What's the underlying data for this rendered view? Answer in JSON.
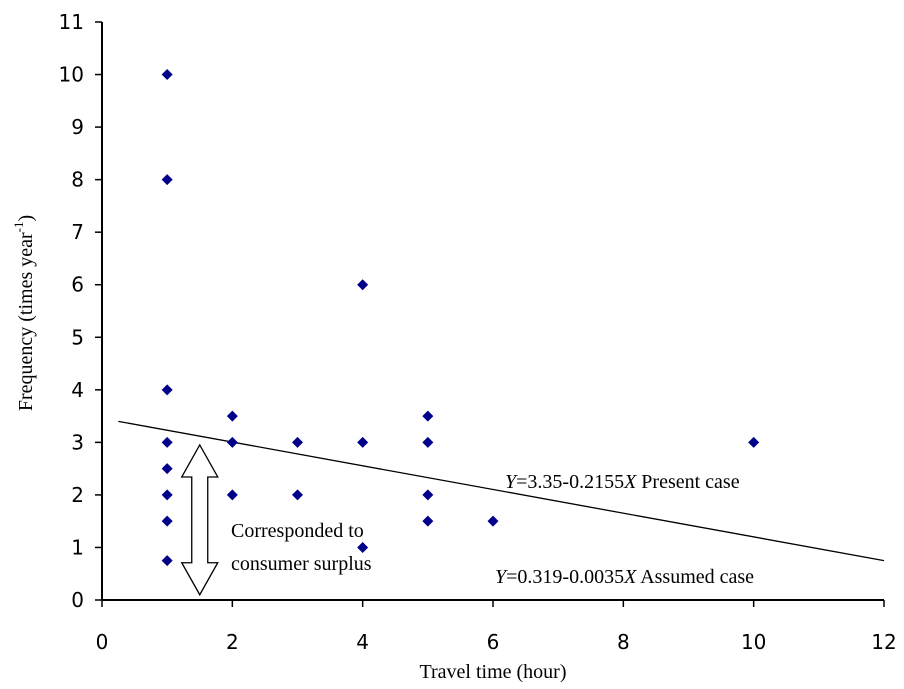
{
  "chart_data": {
    "type": "scatter",
    "title": "",
    "xlabel": "Travel time (hour)",
    "ylabel_main": "Frequency (times year",
    "ylabel_sup": "-1",
    "ylabel_close": ")",
    "xlim": [
      0,
      12
    ],
    "ylim": [
      0,
      11
    ],
    "xticks": [
      0,
      2,
      4,
      6,
      8,
      10,
      12
    ],
    "yticks": [
      0,
      1,
      2,
      3,
      4,
      5,
      6,
      7,
      8,
      9,
      10,
      11
    ],
    "grid": false,
    "legend": "none",
    "marker_color": "#00008B",
    "series": [
      {
        "points": [
          {
            "x": 1,
            "y": 10
          },
          {
            "x": 1,
            "y": 8
          },
          {
            "x": 1,
            "y": 4
          },
          {
            "x": 1,
            "y": 3
          },
          {
            "x": 1,
            "y": 2.5
          },
          {
            "x": 1,
            "y": 2
          },
          {
            "x": 1,
            "y": 1.5
          },
          {
            "x": 1,
            "y": 0.75
          },
          {
            "x": 2,
            "y": 3.5
          },
          {
            "x": 2,
            "y": 3
          },
          {
            "x": 2,
            "y": 2
          },
          {
            "x": 3,
            "y": 3
          },
          {
            "x": 3,
            "y": 2
          },
          {
            "x": 4,
            "y": 6
          },
          {
            "x": 4,
            "y": 3
          },
          {
            "x": 4,
            "y": 1
          },
          {
            "x": 5,
            "y": 3.5
          },
          {
            "x": 5,
            "y": 3
          },
          {
            "x": 5,
            "y": 2
          },
          {
            "x": 5,
            "y": 1.5
          },
          {
            "x": 6,
            "y": 1.5
          },
          {
            "x": 10,
            "y": 3
          }
        ]
      }
    ],
    "trend_line": {
      "x": [
        0.25,
        12
      ],
      "y": [
        3.4,
        0.75
      ]
    },
    "annotations": {
      "present_y": "Y",
      "present_rest": "=3.35-0.2155",
      "present_x": "X",
      "present_tail": " Present case",
      "assumed_y": "Y",
      "assumed_rest": "=0.319-0.0035",
      "assumed_x": "X",
      "assumed_tail": " Assumed case",
      "surplus_line1": "Corresponded to",
      "surplus_line2": "consumer surplus",
      "arrow_range": [
        0.1,
        2.95
      ],
      "arrow_x": 1.5
    }
  }
}
